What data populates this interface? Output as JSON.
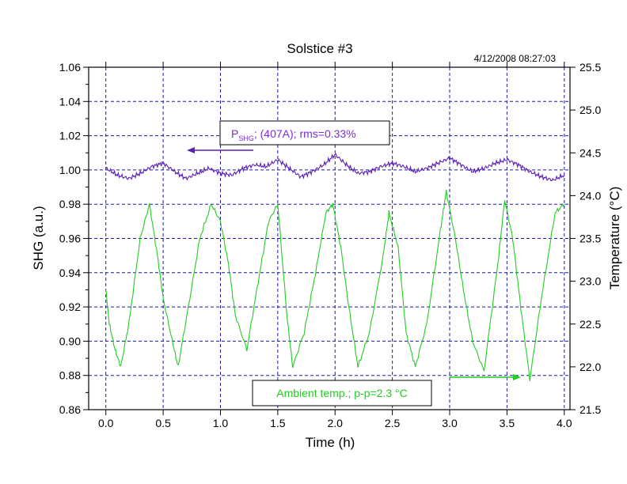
{
  "chart_data": {
    "type": "line",
    "title": "Solstice #3",
    "timestamp": "4/12/2008 08:27:03",
    "xlabel": "Time (h)",
    "ylabel_left": "SHG (a.u.)",
    "ylabel_right": "Temperature (°C)",
    "xlim": [
      -0.15,
      4.05
    ],
    "ylim_left": [
      0.86,
      1.06
    ],
    "ylim_right": [
      21.5,
      25.5
    ],
    "x_ticks": [
      "0.0",
      "0.5",
      "1.0",
      "1.5",
      "2.0",
      "2.5",
      "3.0",
      "3.5",
      "4.0"
    ],
    "y_ticks_left": [
      "0.86",
      "0.88",
      "0.90",
      "0.92",
      "0.94",
      "0.96",
      "0.98",
      "1.00",
      "1.02",
      "1.04",
      "1.06"
    ],
    "y_ticks_right": [
      "21.5",
      "22.0",
      "22.5",
      "23.0",
      "23.5",
      "24.0",
      "24.5",
      "25.0",
      "25.5"
    ],
    "grid": true,
    "series": [
      {
        "name": "P_SHG; (407A); rms=0.33%",
        "axis": "left",
        "color": "#5b1fb5",
        "x": [
          0.0,
          0.1,
          0.2,
          0.3,
          0.4,
          0.5,
          0.6,
          0.7,
          0.8,
          0.9,
          1.0,
          1.1,
          1.2,
          1.3,
          1.4,
          1.5,
          1.6,
          1.7,
          1.8,
          1.9,
          2.0,
          2.1,
          2.2,
          2.3,
          2.4,
          2.5,
          2.6,
          2.7,
          2.8,
          2.9,
          3.0,
          3.1,
          3.2,
          3.3,
          3.4,
          3.5,
          3.6,
          3.7,
          3.8,
          3.9,
          4.0
        ],
        "values": [
          1.001,
          0.997,
          0.995,
          0.998,
          1.002,
          1.004,
          0.999,
          0.995,
          0.998,
          1.001,
          0.998,
          0.997,
          1.001,
          1.003,
          1.002,
          1.006,
          1.001,
          0.996,
          0.999,
          1.003,
          1.009,
          1.003,
          0.998,
          0.999,
          1.002,
          1.004,
          1.002,
          0.999,
          1.001,
          1.004,
          1.007,
          1.003,
          0.999,
          1.001,
          1.004,
          1.006,
          1.003,
          0.999,
          0.996,
          0.994,
          0.997
        ]
      },
      {
        "name": "Ambient temp.; p-p=2.3 °C",
        "axis": "right",
        "color": "#22cc22",
        "x": [
          0.0,
          0.03,
          0.08,
          0.13,
          0.2,
          0.3,
          0.38,
          0.45,
          0.5,
          0.58,
          0.63,
          0.72,
          0.82,
          0.92,
          1.0,
          1.07,
          1.13,
          1.23,
          1.33,
          1.42,
          1.5,
          1.58,
          1.63,
          1.73,
          1.83,
          1.92,
          1.98,
          2.05,
          2.12,
          2.2,
          2.3,
          2.42,
          2.47,
          2.55,
          2.62,
          2.7,
          2.8,
          2.92,
          2.97,
          3.05,
          3.12,
          3.2,
          3.3,
          3.42,
          3.48,
          3.55,
          3.62,
          3.7,
          3.8,
          3.92,
          4.0
        ],
        "values": [
          22.9,
          22.5,
          22.2,
          22.0,
          22.5,
          23.5,
          23.9,
          23.3,
          22.8,
          22.3,
          22.0,
          22.7,
          23.5,
          23.9,
          23.7,
          23.2,
          22.6,
          22.2,
          23.0,
          23.7,
          23.9,
          22.6,
          22.0,
          22.4,
          23.1,
          23.8,
          23.9,
          23.4,
          22.7,
          22.0,
          22.4,
          23.3,
          23.8,
          23.4,
          22.4,
          22.0,
          22.5,
          23.6,
          24.05,
          23.5,
          22.9,
          22.3,
          21.95,
          23.2,
          23.95,
          23.5,
          22.7,
          21.85,
          22.8,
          23.8,
          23.9
        ]
      }
    ],
    "legend_labels": {
      "shg_main": "P",
      "shg_sub": "SHG",
      "shg_rest": "; (407A); rms=0.33%",
      "temp": "Ambient temp.; p-p=2.3 °C"
    }
  }
}
